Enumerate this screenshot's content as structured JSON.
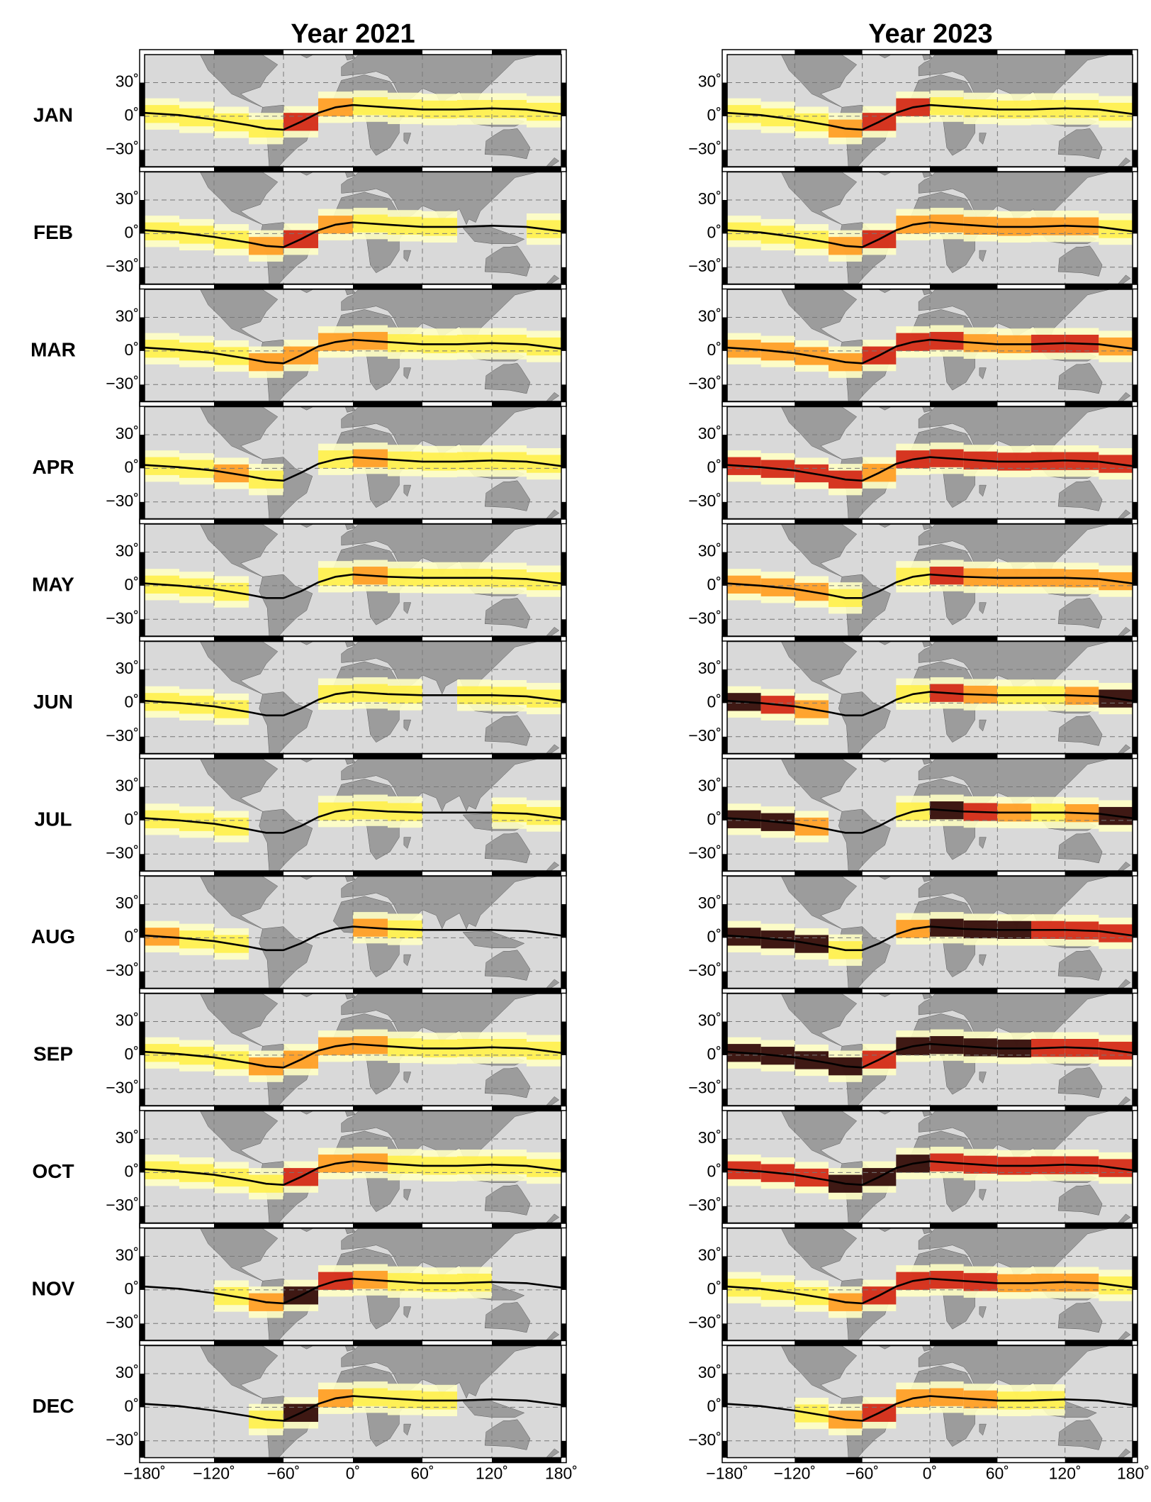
{
  "chart_data": [
    {
      "type": "map",
      "title": "Year 2021",
      "xlim": [
        -180,
        180
      ],
      "ylim": [
        -45,
        55
      ],
      "xticks": [
        {
          "value": -180,
          "label": "−180˚"
        },
        {
          "value": -120,
          "label": "−120˚"
        },
        {
          "value": -60,
          "label": "−60˚"
        },
        {
          "value": 0,
          "label": "0˚"
        },
        {
          "value": 60,
          "label": "60˚"
        },
        {
          "value": 120,
          "label": "120˚"
        },
        {
          "value": 180,
          "label": "180˚"
        }
      ],
      "yticks": [
        {
          "value": 30,
          "label": "30˚"
        },
        {
          "value": 0,
          "label": "0˚"
        },
        {
          "value": -30,
          "label": "−30˚"
        }
      ],
      "grid": true,
      "line_color": "#000000",
      "colors": [
        "#ffffc4",
        "#fff04a",
        "#ff9a1e",
        "#d2200e",
        "#2a0000"
      ],
      "x": [
        -180,
        -150,
        -120,
        -90,
        -75,
        -60,
        -45,
        -30,
        -15,
        0,
        30,
        60,
        90,
        120,
        150,
        180
      ],
      "bins": [
        -180,
        -150,
        -120,
        -90,
        -60,
        -30,
        0,
        30,
        60,
        90,
        120,
        150,
        180
      ],
      "panels": [
        {
          "label": "JAN",
          "line": [
            3,
            1,
            -3,
            -8,
            -11,
            -12,
            -5,
            3,
            8,
            10,
            8,
            6,
            6,
            7,
            6,
            2
          ],
          "intensity": [
            1,
            1,
            1,
            1,
            3,
            2,
            1,
            1,
            1,
            1,
            1,
            1
          ]
        },
        {
          "label": "FEB",
          "line": [
            3,
            1,
            -3,
            -8,
            -11,
            -12,
            -5,
            3,
            8,
            10,
            8,
            6,
            6,
            7,
            6,
            2
          ],
          "intensity": [
            1,
            1,
            1,
            2,
            3,
            2,
            1,
            1,
            1,
            0,
            0,
            1
          ]
        },
        {
          "label": "MAR",
          "line": [
            3,
            1,
            -2,
            -7,
            -10,
            -11,
            -4,
            4,
            8,
            10,
            8,
            6,
            6,
            7,
            6,
            2
          ],
          "intensity": [
            1,
            1,
            1,
            2,
            2,
            2,
            2,
            1,
            1,
            1,
            1,
            1
          ]
        },
        {
          "label": "APR",
          "line": [
            3,
            1,
            -2,
            -7,
            -10,
            -11,
            -4,
            4,
            8,
            10,
            8,
            6,
            6,
            7,
            6,
            2
          ],
          "intensity": [
            1,
            1,
            2,
            1,
            0,
            1,
            2,
            1,
            1,
            1,
            1,
            1
          ]
        },
        {
          "label": "MAY",
          "line": [
            2,
            0,
            -3,
            -8,
            -11,
            -11,
            -5,
            3,
            8,
            10,
            8,
            7,
            7,
            7,
            6,
            2
          ],
          "intensity": [
            1,
            1,
            1,
            0,
            0,
            1,
            2,
            1,
            1,
            1,
            1,
            1
          ]
        },
        {
          "label": "JUN",
          "line": [
            2,
            0,
            -3,
            -8,
            -11,
            -11,
            -5,
            3,
            8,
            10,
            8,
            7,
            7,
            7,
            6,
            2
          ],
          "intensity": [
            1,
            1,
            1,
            0,
            0,
            1,
            1,
            1,
            0,
            1,
            1,
            1
          ]
        },
        {
          "label": "JUL",
          "line": [
            2,
            0,
            -3,
            -8,
            -11,
            -11,
            -5,
            3,
            8,
            10,
            8,
            7,
            7,
            7,
            6,
            2
          ],
          "intensity": [
            1,
            1,
            1,
            0,
            0,
            1,
            1,
            1,
            0,
            0,
            1,
            1
          ]
        },
        {
          "label": "AUG",
          "line": [
            2,
            0,
            -3,
            -8,
            -11,
            -11,
            -5,
            3,
            8,
            10,
            8,
            7,
            7,
            7,
            6,
            2
          ],
          "intensity": [
            2,
            1,
            1,
            0,
            0,
            0,
            2,
            1,
            0,
            0,
            0,
            0
          ]
        },
        {
          "label": "SEP",
          "line": [
            3,
            1,
            -2,
            -7,
            -10,
            -11,
            -4,
            4,
            8,
            10,
            8,
            6,
            6,
            7,
            6,
            2
          ],
          "intensity": [
            1,
            1,
            1,
            2,
            2,
            2,
            2,
            1,
            1,
            1,
            1,
            1
          ]
        },
        {
          "label": "OCT",
          "line": [
            3,
            1,
            -2,
            -7,
            -10,
            -11,
            -4,
            4,
            8,
            10,
            8,
            6,
            6,
            7,
            6,
            2
          ],
          "intensity": [
            1,
            1,
            1,
            1,
            3,
            2,
            2,
            1,
            1,
            1,
            1,
            1
          ]
        },
        {
          "label": "NOV",
          "line": [
            3,
            1,
            -3,
            -8,
            -11,
            -12,
            -5,
            3,
            8,
            10,
            8,
            6,
            6,
            7,
            6,
            2
          ],
          "intensity": [
            0,
            0,
            1,
            2,
            4,
            3,
            2,
            1,
            1,
            1,
            0,
            0
          ]
        },
        {
          "label": "DEC",
          "line": [
            3,
            1,
            -3,
            -8,
            -11,
            -12,
            -5,
            3,
            8,
            10,
            8,
            6,
            6,
            7,
            6,
            2
          ],
          "intensity": [
            0,
            0,
            0,
            1,
            4,
            2,
            1,
            1,
            1,
            0,
            0,
            0
          ]
        }
      ]
    },
    {
      "type": "map",
      "title": "Year 2023",
      "xlim": [
        -180,
        180
      ],
      "ylim": [
        -45,
        55
      ],
      "xticks": [
        {
          "value": -180,
          "label": "−180˚"
        },
        {
          "value": -120,
          "label": "−120˚"
        },
        {
          "value": -60,
          "label": "−60˚"
        },
        {
          "value": 0,
          "label": "0˚"
        },
        {
          "value": 60,
          "label": "60˚"
        },
        {
          "value": 120,
          "label": "120˚"
        },
        {
          "value": 180,
          "label": "180˚"
        }
      ],
      "yticks": [
        {
          "value": 30,
          "label": "30˚"
        },
        {
          "value": 0,
          "label": "0˚"
        },
        {
          "value": -30,
          "label": "−30˚"
        }
      ],
      "grid": true,
      "line_color": "#000000",
      "colors": [
        "#ffffc4",
        "#fff04a",
        "#ff9a1e",
        "#d2200e",
        "#2a0000"
      ],
      "x": [
        -180,
        -150,
        -120,
        -90,
        -75,
        -60,
        -45,
        -30,
        -15,
        0,
        30,
        60,
        90,
        120,
        150,
        180
      ],
      "bins": [
        -180,
        -150,
        -120,
        -90,
        -60,
        -30,
        0,
        30,
        60,
        90,
        120,
        150,
        180
      ],
      "panels": [
        {
          "line": [
            3,
            1,
            -3,
            -8,
            -11,
            -12,
            -5,
            3,
            8,
            10,
            8,
            6,
            6,
            7,
            6,
            2
          ],
          "intensity": [
            1,
            1,
            1,
            2,
            3,
            3,
            1,
            1,
            1,
            1,
            1,
            1
          ]
        },
        {
          "line": [
            3,
            1,
            -3,
            -8,
            -11,
            -12,
            -5,
            3,
            8,
            10,
            8,
            6,
            6,
            7,
            6,
            2
          ],
          "intensity": [
            1,
            1,
            1,
            2,
            3,
            2,
            2,
            2,
            2,
            2,
            2,
            1
          ]
        },
        {
          "line": [
            3,
            1,
            -2,
            -7,
            -10,
            -11,
            -4,
            4,
            8,
            10,
            8,
            6,
            6,
            7,
            6,
            2
          ],
          "intensity": [
            2,
            2,
            2,
            2,
            3,
            3,
            3,
            2,
            2,
            3,
            3,
            2
          ]
        },
        {
          "line": [
            3,
            1,
            -2,
            -7,
            -10,
            -11,
            -4,
            4,
            8,
            10,
            8,
            6,
            6,
            7,
            6,
            2
          ],
          "intensity": [
            3,
            3,
            3,
            3,
            2,
            3,
            3,
            3,
            3,
            3,
            3,
            3
          ]
        },
        {
          "line": [
            2,
            0,
            -3,
            -8,
            -11,
            -11,
            -5,
            3,
            8,
            10,
            8,
            7,
            7,
            7,
            6,
            2
          ],
          "intensity": [
            2,
            2,
            2,
            1,
            0,
            1,
            3,
            2,
            2,
            2,
            2,
            2
          ]
        },
        {
          "line": [
            2,
            0,
            -3,
            -8,
            -11,
            -11,
            -5,
            3,
            8,
            10,
            8,
            7,
            7,
            7,
            6,
            2
          ],
          "intensity": [
            4,
            3,
            2,
            0,
            0,
            1,
            3,
            2,
            1,
            1,
            2,
            4
          ]
        },
        {
          "line": [
            2,
            0,
            -3,
            -8,
            -11,
            -11,
            -5,
            3,
            8,
            10,
            8,
            7,
            7,
            7,
            6,
            2
          ],
          "intensity": [
            4,
            4,
            2,
            0,
            0,
            1,
            4,
            3,
            2,
            1,
            2,
            4
          ]
        },
        {
          "line": [
            2,
            0,
            -3,
            -8,
            -11,
            -11,
            -5,
            3,
            8,
            10,
            8,
            7,
            7,
            7,
            6,
            2
          ],
          "intensity": [
            4,
            4,
            4,
            1,
            0,
            2,
            4,
            4,
            4,
            3,
            3,
            3
          ]
        },
        {
          "line": [
            3,
            1,
            -2,
            -7,
            -10,
            -11,
            -4,
            4,
            8,
            10,
            8,
            6,
            6,
            7,
            6,
            2
          ],
          "intensity": [
            4,
            4,
            4,
            4,
            3,
            4,
            4,
            4,
            4,
            3,
            3,
            3
          ]
        },
        {
          "line": [
            3,
            1,
            -2,
            -7,
            -10,
            -11,
            -4,
            4,
            8,
            10,
            8,
            6,
            6,
            7,
            6,
            2
          ],
          "intensity": [
            3,
            3,
            3,
            4,
            4,
            4,
            3,
            3,
            3,
            3,
            3,
            3
          ]
        },
        {
          "line": [
            3,
            1,
            -3,
            -8,
            -11,
            -12,
            -5,
            3,
            8,
            10,
            8,
            6,
            6,
            7,
            6,
            2
          ],
          "intensity": [
            1,
            1,
            1,
            2,
            3,
            3,
            3,
            3,
            2,
            2,
            2,
            1
          ]
        },
        {
          "line": [
            3,
            1,
            -3,
            -8,
            -11,
            -12,
            -5,
            3,
            8,
            10,
            8,
            6,
            6,
            7,
            6,
            2
          ],
          "intensity": [
            0,
            0,
            1,
            2,
            3,
            2,
            2,
            2,
            1,
            1,
            0,
            0
          ]
        }
      ]
    }
  ]
}
